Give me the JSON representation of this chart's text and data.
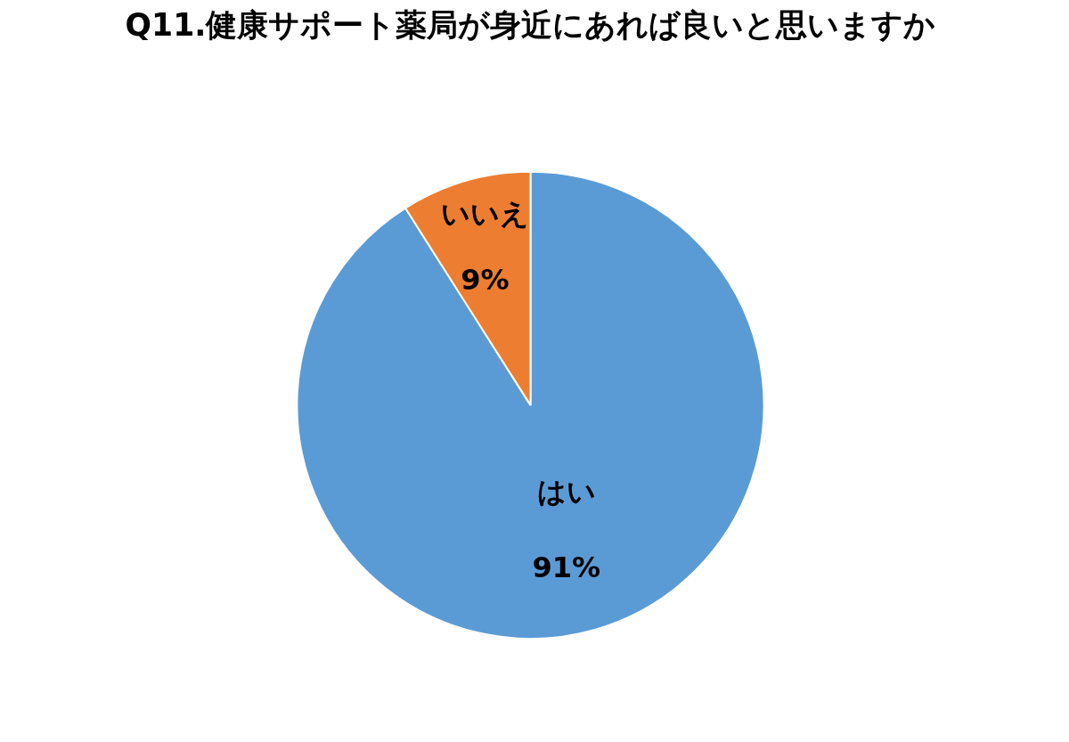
{
  "chart_data": {
    "type": "pie",
    "title": "Q11.健康サポート薬局が身近にあれば良いと思いますか",
    "categories": [
      "はい",
      "いいえ"
    ],
    "values": [
      91,
      9
    ],
    "colors": [
      "#5b9bd5",
      "#ed7d31"
    ],
    "value_labels": [
      "91%",
      "9%"
    ]
  }
}
